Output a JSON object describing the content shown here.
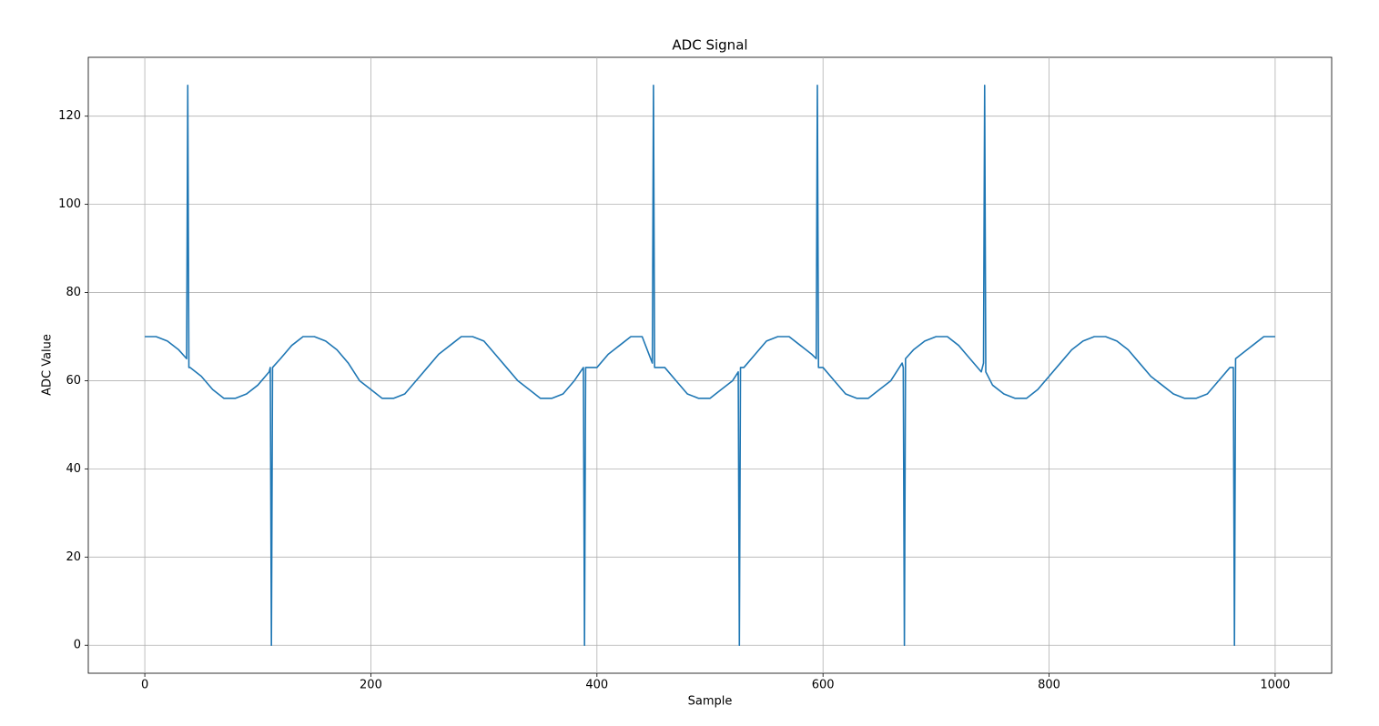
{
  "chart_data": {
    "type": "line",
    "title": "ADC Signal",
    "x_label": "Sample",
    "y_label": "ADC Value",
    "color": "#1f77b4",
    "grid": true,
    "xlim": [
      -50,
      1050
    ],
    "ylim": [
      -6.35,
      133.35
    ],
    "xticks": [
      0,
      200,
      400,
      600,
      800,
      1000
    ],
    "yticks": [
      0,
      20,
      40,
      60,
      80,
      100,
      120
    ],
    "x": [
      0,
      10,
      20,
      30,
      37,
      38,
      39,
      40,
      50,
      60,
      70,
      80,
      90,
      100,
      110,
      111,
      112,
      113,
      120,
      130,
      140,
      150,
      160,
      170,
      180,
      190,
      200,
      210,
      220,
      230,
      240,
      250,
      260,
      270,
      280,
      290,
      300,
      310,
      320,
      330,
      340,
      350,
      360,
      370,
      380,
      388,
      389,
      390,
      400,
      410,
      420,
      430,
      440,
      449,
      450,
      451,
      460,
      470,
      480,
      490,
      500,
      510,
      520,
      525,
      526,
      527,
      530,
      540,
      550,
      560,
      570,
      580,
      590,
      594,
      595,
      596,
      600,
      610,
      620,
      630,
      640,
      650,
      660,
      670,
      671,
      672,
      673,
      680,
      690,
      700,
      710,
      720,
      730,
      740,
      742,
      743,
      744,
      750,
      760,
      770,
      780,
      790,
      800,
      810,
      820,
      830,
      840,
      850,
      860,
      870,
      880,
      890,
      900,
      910,
      920,
      930,
      940,
      950,
      960,
      963,
      964,
      965,
      970,
      980,
      990,
      1000
    ],
    "values": [
      70,
      70,
      69,
      67,
      65,
      127,
      63,
      63,
      61,
      58,
      56,
      56,
      57,
      59,
      62,
      63,
      0,
      63,
      65,
      68,
      70,
      70,
      69,
      67,
      64,
      60,
      58,
      56,
      56,
      57,
      60,
      63,
      66,
      68,
      70,
      70,
      69,
      66,
      63,
      60,
      58,
      56,
      56,
      57,
      60,
      63,
      0,
      63,
      63,
      66,
      68,
      70,
      70,
      64,
      127,
      63,
      63,
      60,
      57,
      56,
      56,
      58,
      60,
      62,
      0,
      63,
      63,
      66,
      69,
      70,
      70,
      68,
      66,
      65,
      127,
      63,
      63,
      60,
      57,
      56,
      56,
      58,
      60,
      64,
      63,
      0,
      65,
      67,
      69,
      70,
      70,
      68,
      65,
      62,
      64,
      127,
      62,
      59,
      57,
      56,
      56,
      58,
      61,
      64,
      67,
      69,
      70,
      70,
      69,
      67,
      64,
      61,
      59,
      57,
      56,
      56,
      57,
      60,
      63,
      63,
      0,
      65,
      66,
      68,
      70,
      70
    ]
  }
}
